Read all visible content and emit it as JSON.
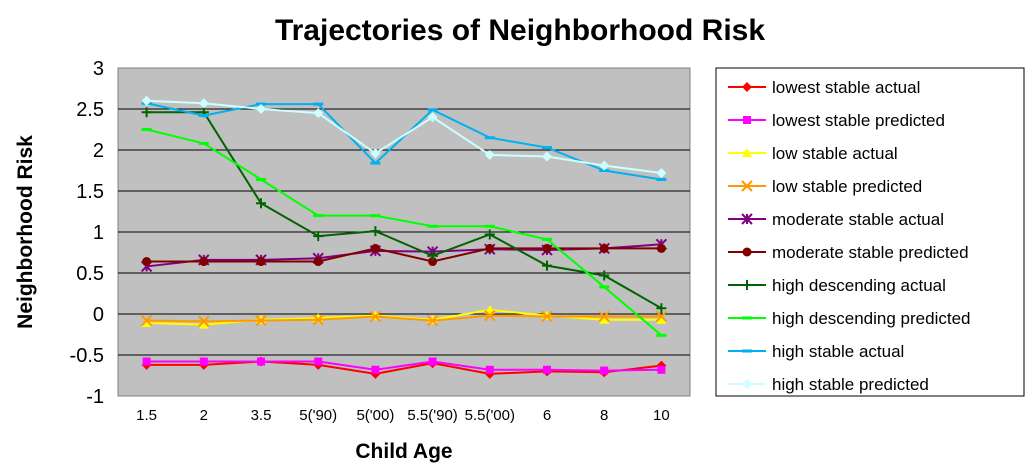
{
  "chart_data": {
    "type": "line",
    "title": "Trajectories of Neighborhood Risk",
    "xlabel": "Child Age",
    "ylabel": "Neighborhood Risk",
    "categories": [
      "1.5",
      "2",
      "3.5",
      "5('90)",
      "5('00)",
      "5.5('90)",
      "5.5('00)",
      "6",
      "8",
      "10"
    ],
    "ylim": [
      -1,
      3
    ],
    "yticks": [
      "3",
      "2.5",
      "2",
      "1.5",
      "1",
      "0.5",
      "0",
      "-0.5",
      "-1"
    ],
    "grid": "horizontal",
    "plot_background": "#c0c0c0",
    "legend_position": "right",
    "series": [
      {
        "name": "lowest stable actual",
        "color": "#ff0000",
        "marker": "diamond",
        "values": [
          -0.62,
          -0.62,
          -0.58,
          -0.62,
          -0.73,
          -0.6,
          -0.73,
          -0.7,
          -0.71,
          -0.63
        ]
      },
      {
        "name": "lowest stable predicted",
        "color": "#ff00ff",
        "marker": "square",
        "values": [
          -0.58,
          -0.58,
          -0.58,
          -0.58,
          -0.68,
          -0.58,
          -0.68,
          -0.68,
          -0.69,
          -0.68
        ]
      },
      {
        "name": "low stable actual",
        "color": "#ffff00",
        "marker": "triangle",
        "values": [
          -0.11,
          -0.13,
          -0.07,
          -0.05,
          -0.02,
          -0.07,
          0.05,
          -0.02,
          -0.07,
          -0.07
        ]
      },
      {
        "name": "low stable predicted",
        "color": "#ff9900",
        "marker": "x",
        "values": [
          -0.08,
          -0.09,
          -0.08,
          -0.07,
          -0.03,
          -0.08,
          -0.02,
          -0.03,
          -0.03,
          -0.03
        ]
      },
      {
        "name": "moderate stable actual",
        "color": "#800080",
        "marker": "star",
        "values": [
          0.58,
          0.66,
          0.66,
          0.68,
          0.77,
          0.76,
          0.79,
          0.78,
          0.8,
          0.85
        ]
      },
      {
        "name": "moderate stable predicted",
        "color": "#800000",
        "marker": "circle",
        "values": [
          0.64,
          0.64,
          0.64,
          0.64,
          0.8,
          0.64,
          0.8,
          0.8,
          0.8,
          0.8
        ]
      },
      {
        "name": "high descending actual",
        "color": "#006400",
        "marker": "plus",
        "values": [
          2.46,
          2.46,
          1.35,
          0.95,
          1.01,
          0.71,
          0.97,
          0.59,
          0.47,
          0.07
        ]
      },
      {
        "name": "high descending predicted",
        "color": "#00ff00",
        "marker": "dash",
        "values": [
          2.25,
          2.08,
          1.64,
          1.2,
          1.2,
          1.07,
          1.07,
          0.91,
          0.33,
          -0.26
        ]
      },
      {
        "name": "high stable actual",
        "color": "#00b0f0",
        "marker": "dash",
        "values": [
          2.57,
          2.42,
          2.56,
          2.56,
          1.84,
          2.49,
          2.15,
          2.03,
          1.75,
          1.64
        ]
      },
      {
        "name": "high stable predicted",
        "color": "#ccffff",
        "marker": "diamond",
        "values": [
          2.6,
          2.57,
          2.5,
          2.45,
          1.96,
          2.4,
          1.94,
          1.92,
          1.81,
          1.72
        ]
      }
    ]
  }
}
